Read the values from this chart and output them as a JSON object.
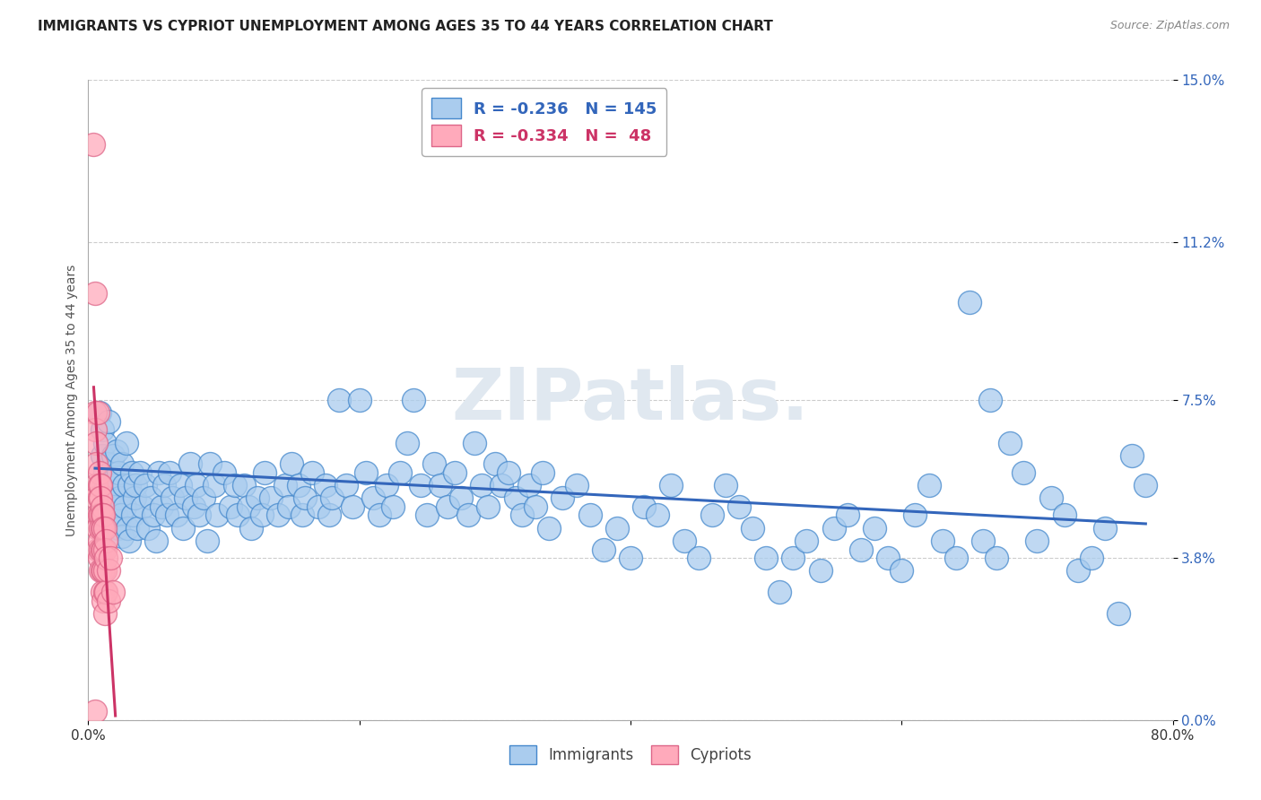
{
  "title": "IMMIGRANTS VS CYPRIOT UNEMPLOYMENT AMONG AGES 35 TO 44 YEARS CORRELATION CHART",
  "source": "Source: ZipAtlas.com",
  "ylabel": "Unemployment Among Ages 35 to 44 years",
  "xlim": [
    0.0,
    0.8
  ],
  "ylim": [
    0.0,
    0.15
  ],
  "ytick_positions": [
    0.0,
    0.038,
    0.075,
    0.112,
    0.15
  ],
  "ytick_labels": [
    "0.0%",
    "3.8%",
    "7.5%",
    "11.2%",
    "15.0%"
  ],
  "xtick_positions": [
    0.0,
    0.2,
    0.4,
    0.6,
    0.8
  ],
  "xtick_labels": [
    "0.0%",
    "",
    "",
    "",
    "80.0%"
  ],
  "grid_color": "#cccccc",
  "watermark_text": "ZIPatlas.",
  "legend_R_blue": "-0.236",
  "legend_N_blue": "145",
  "legend_R_pink": "-0.334",
  "legend_N_pink": "48",
  "blue_fill": "#aaccee",
  "blue_edge": "#4488cc",
  "pink_fill": "#ffaabb",
  "pink_edge": "#dd6688",
  "blue_line": "#3366bb",
  "pink_line": "#cc3366",
  "blue_trendline": [
    [
      0.005,
      0.059
    ],
    [
      0.78,
      0.046
    ]
  ],
  "pink_trendline": [
    [
      0.004,
      0.078
    ],
    [
      0.02,
      0.001
    ]
  ],
  "immigrants_scatter": [
    [
      0.008,
      0.072
    ],
    [
      0.01,
      0.068
    ],
    [
      0.01,
      0.062
    ],
    [
      0.012,
      0.058
    ],
    [
      0.012,
      0.065
    ],
    [
      0.013,
      0.055
    ],
    [
      0.014,
      0.06
    ],
    [
      0.015,
      0.07
    ],
    [
      0.015,
      0.052
    ],
    [
      0.016,
      0.058
    ],
    [
      0.016,
      0.048
    ],
    [
      0.017,
      0.053
    ],
    [
      0.018,
      0.062
    ],
    [
      0.018,
      0.055
    ],
    [
      0.019,
      0.05
    ],
    [
      0.02,
      0.057
    ],
    [
      0.02,
      0.048
    ],
    [
      0.021,
      0.063
    ],
    [
      0.022,
      0.058
    ],
    [
      0.022,
      0.045
    ],
    [
      0.023,
      0.052
    ],
    [
      0.024,
      0.048
    ],
    [
      0.025,
      0.06
    ],
    [
      0.025,
      0.043
    ],
    [
      0.026,
      0.055
    ],
    [
      0.027,
      0.05
    ],
    [
      0.028,
      0.065
    ],
    [
      0.029,
      0.045
    ],
    [
      0.03,
      0.055
    ],
    [
      0.03,
      0.042
    ],
    [
      0.032,
      0.058
    ],
    [
      0.033,
      0.048
    ],
    [
      0.034,
      0.052
    ],
    [
      0.035,
      0.055
    ],
    [
      0.036,
      0.045
    ],
    [
      0.038,
      0.058
    ],
    [
      0.04,
      0.05
    ],
    [
      0.042,
      0.055
    ],
    [
      0.044,
      0.045
    ],
    [
      0.046,
      0.052
    ],
    [
      0.048,
      0.048
    ],
    [
      0.05,
      0.042
    ],
    [
      0.052,
      0.058
    ],
    [
      0.054,
      0.05
    ],
    [
      0.056,
      0.055
    ],
    [
      0.058,
      0.048
    ],
    [
      0.06,
      0.058
    ],
    [
      0.062,
      0.052
    ],
    [
      0.065,
      0.048
    ],
    [
      0.068,
      0.055
    ],
    [
      0.07,
      0.045
    ],
    [
      0.072,
      0.052
    ],
    [
      0.075,
      0.06
    ],
    [
      0.078,
      0.05
    ],
    [
      0.08,
      0.055
    ],
    [
      0.082,
      0.048
    ],
    [
      0.085,
      0.052
    ],
    [
      0.088,
      0.042
    ],
    [
      0.09,
      0.06
    ],
    [
      0.093,
      0.055
    ],
    [
      0.095,
      0.048
    ],
    [
      0.1,
      0.058
    ],
    [
      0.105,
      0.05
    ],
    [
      0.108,
      0.055
    ],
    [
      0.11,
      0.048
    ],
    [
      0.115,
      0.055
    ],
    [
      0.118,
      0.05
    ],
    [
      0.12,
      0.045
    ],
    [
      0.125,
      0.052
    ],
    [
      0.128,
      0.048
    ],
    [
      0.13,
      0.058
    ],
    [
      0.135,
      0.052
    ],
    [
      0.14,
      0.048
    ],
    [
      0.145,
      0.055
    ],
    [
      0.148,
      0.05
    ],
    [
      0.15,
      0.06
    ],
    [
      0.155,
      0.055
    ],
    [
      0.158,
      0.048
    ],
    [
      0.16,
      0.052
    ],
    [
      0.165,
      0.058
    ],
    [
      0.17,
      0.05
    ],
    [
      0.175,
      0.055
    ],
    [
      0.178,
      0.048
    ],
    [
      0.18,
      0.052
    ],
    [
      0.185,
      0.075
    ],
    [
      0.19,
      0.055
    ],
    [
      0.195,
      0.05
    ],
    [
      0.2,
      0.075
    ],
    [
      0.205,
      0.058
    ],
    [
      0.21,
      0.052
    ],
    [
      0.215,
      0.048
    ],
    [
      0.22,
      0.055
    ],
    [
      0.225,
      0.05
    ],
    [
      0.23,
      0.058
    ],
    [
      0.235,
      0.065
    ],
    [
      0.24,
      0.075
    ],
    [
      0.245,
      0.055
    ],
    [
      0.25,
      0.048
    ],
    [
      0.255,
      0.06
    ],
    [
      0.26,
      0.055
    ],
    [
      0.265,
      0.05
    ],
    [
      0.27,
      0.058
    ],
    [
      0.275,
      0.052
    ],
    [
      0.28,
      0.048
    ],
    [
      0.285,
      0.065
    ],
    [
      0.29,
      0.055
    ],
    [
      0.295,
      0.05
    ],
    [
      0.3,
      0.06
    ],
    [
      0.305,
      0.055
    ],
    [
      0.31,
      0.058
    ],
    [
      0.315,
      0.052
    ],
    [
      0.32,
      0.048
    ],
    [
      0.325,
      0.055
    ],
    [
      0.33,
      0.05
    ],
    [
      0.335,
      0.058
    ],
    [
      0.34,
      0.045
    ],
    [
      0.35,
      0.052
    ],
    [
      0.36,
      0.055
    ],
    [
      0.37,
      0.048
    ],
    [
      0.38,
      0.04
    ],
    [
      0.39,
      0.045
    ],
    [
      0.4,
      0.038
    ],
    [
      0.41,
      0.05
    ],
    [
      0.42,
      0.048
    ],
    [
      0.43,
      0.055
    ],
    [
      0.44,
      0.042
    ],
    [
      0.45,
      0.038
    ],
    [
      0.46,
      0.048
    ],
    [
      0.47,
      0.055
    ],
    [
      0.48,
      0.05
    ],
    [
      0.49,
      0.045
    ],
    [
      0.5,
      0.038
    ],
    [
      0.51,
      0.03
    ],
    [
      0.52,
      0.038
    ],
    [
      0.53,
      0.042
    ],
    [
      0.54,
      0.035
    ],
    [
      0.55,
      0.045
    ],
    [
      0.56,
      0.048
    ],
    [
      0.57,
      0.04
    ],
    [
      0.58,
      0.045
    ],
    [
      0.59,
      0.038
    ],
    [
      0.6,
      0.035
    ],
    [
      0.61,
      0.048
    ],
    [
      0.62,
      0.055
    ],
    [
      0.63,
      0.042
    ],
    [
      0.64,
      0.038
    ],
    [
      0.65,
      0.098
    ],
    [
      0.66,
      0.042
    ],
    [
      0.665,
      0.075
    ],
    [
      0.67,
      0.038
    ],
    [
      0.68,
      0.065
    ],
    [
      0.69,
      0.058
    ],
    [
      0.7,
      0.042
    ],
    [
      0.71,
      0.052
    ],
    [
      0.72,
      0.048
    ],
    [
      0.73,
      0.035
    ],
    [
      0.74,
      0.038
    ],
    [
      0.75,
      0.045
    ],
    [
      0.76,
      0.025
    ],
    [
      0.77,
      0.062
    ],
    [
      0.78,
      0.055
    ]
  ],
  "cypriot_scatter": [
    [
      0.004,
      0.135
    ],
    [
      0.005,
      0.1
    ],
    [
      0.005,
      0.072
    ],
    [
      0.005,
      0.068
    ],
    [
      0.006,
      0.065
    ],
    [
      0.006,
      0.06
    ],
    [
      0.006,
      0.055
    ],
    [
      0.006,
      0.052
    ],
    [
      0.007,
      0.048
    ],
    [
      0.007,
      0.045
    ],
    [
      0.007,
      0.072
    ],
    [
      0.007,
      0.04
    ],
    [
      0.008,
      0.058
    ],
    [
      0.008,
      0.055
    ],
    [
      0.008,
      0.052
    ],
    [
      0.008,
      0.048
    ],
    [
      0.008,
      0.042
    ],
    [
      0.008,
      0.038
    ],
    [
      0.009,
      0.055
    ],
    [
      0.009,
      0.052
    ],
    [
      0.009,
      0.048
    ],
    [
      0.009,
      0.045
    ],
    [
      0.009,
      0.04
    ],
    [
      0.009,
      0.035
    ],
    [
      0.01,
      0.05
    ],
    [
      0.01,
      0.048
    ],
    [
      0.01,
      0.045
    ],
    [
      0.01,
      0.04
    ],
    [
      0.01,
      0.035
    ],
    [
      0.01,
      0.03
    ],
    [
      0.011,
      0.048
    ],
    [
      0.011,
      0.045
    ],
    [
      0.011,
      0.04
    ],
    [
      0.011,
      0.035
    ],
    [
      0.011,
      0.028
    ],
    [
      0.012,
      0.045
    ],
    [
      0.012,
      0.04
    ],
    [
      0.012,
      0.035
    ],
    [
      0.012,
      0.03
    ],
    [
      0.012,
      0.025
    ],
    [
      0.013,
      0.042
    ],
    [
      0.013,
      0.038
    ],
    [
      0.013,
      0.03
    ],
    [
      0.015,
      0.035
    ],
    [
      0.015,
      0.028
    ],
    [
      0.016,
      0.038
    ],
    [
      0.018,
      0.03
    ],
    [
      0.005,
      0.002
    ]
  ]
}
